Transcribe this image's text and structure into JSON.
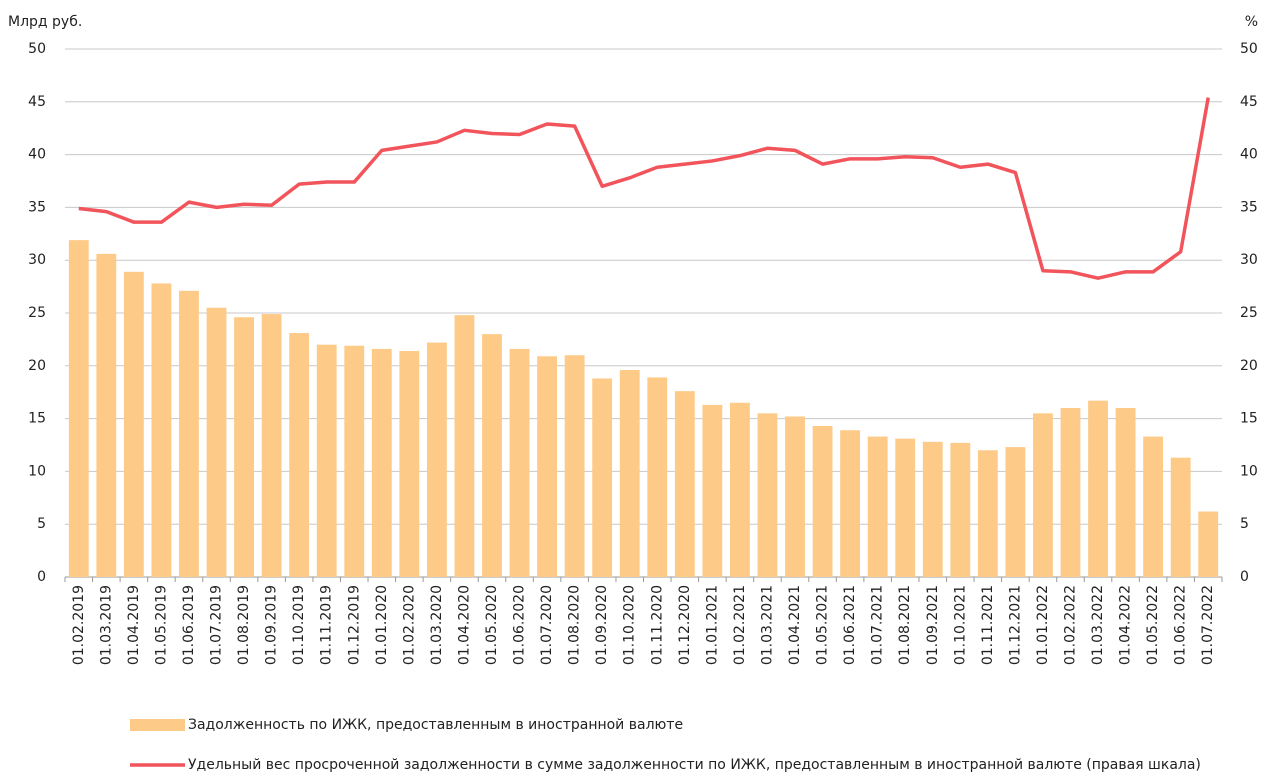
{
  "chart_data": {
    "type": "bar",
    "y_label": "Млрд руб.",
    "y2_label": "%",
    "categories": [
      "01.02.2019",
      "01.03.2019",
      "01.04.2019",
      "01.05.2019",
      "01.06.2019",
      "01.07.2019",
      "01.08.2019",
      "01.09.2019",
      "01.10.2019",
      "01.11.2019",
      "01.12.2019",
      "01.01.2020",
      "01.02.2020",
      "01.03.2020",
      "01.04.2020",
      "01.05.2020",
      "01.06.2020",
      "01.07.2020",
      "01.08.2020",
      "01.09.2020",
      "01.10.2020",
      "01.11.2020",
      "01.12.2020",
      "01.01.2021",
      "01.02.2021",
      "01.03.2021",
      "01.04.2021",
      "01.05.2021",
      "01.06.2021",
      "01.07.2021",
      "01.08.2021",
      "01.09.2021",
      "01.10.2021",
      "01.11.2021",
      "01.12.2021",
      "01.01.2022",
      "01.02.2022",
      "01.03.2022",
      "01.04.2022",
      "01.05.2022",
      "01.06.2022",
      "01.07.2022"
    ],
    "series": [
      {
        "name": "Задолженность по ИЖК, предоставленным в иностранной валюте",
        "type": "bar",
        "color": "#fdca88",
        "values": [
          31.9,
          30.6,
          28.9,
          27.8,
          27.1,
          25.5,
          24.6,
          24.9,
          23.1,
          22.0,
          21.9,
          21.6,
          21.4,
          22.2,
          24.8,
          23.0,
          21.6,
          20.9,
          21.0,
          18.8,
          19.6,
          18.9,
          17.6,
          16.3,
          16.5,
          15.5,
          15.2,
          14.3,
          13.9,
          13.3,
          13.1,
          12.8,
          12.7,
          12.0,
          12.3,
          15.5,
          16.0,
          16.7,
          16.0,
          13.3,
          11.3,
          6.2
        ]
      },
      {
        "name": "Удельный вес просроченной задолженности в сумме задолженности по ИЖК, предоставленным в иностранной валюте (правая шкала)",
        "type": "line",
        "axis": "y2",
        "color": "#f2545b",
        "values": [
          34.9,
          34.6,
          33.6,
          33.6,
          35.5,
          35.0,
          35.3,
          35.2,
          37.2,
          37.4,
          37.4,
          40.4,
          40.8,
          41.2,
          42.3,
          42.0,
          41.9,
          42.9,
          42.7,
          37.0,
          37.8,
          38.8,
          39.1,
          39.4,
          39.9,
          40.6,
          40.4,
          39.1,
          39.6,
          39.6,
          39.8,
          39.7,
          38.8,
          39.1,
          38.3,
          29.0,
          28.9,
          28.3,
          28.9,
          28.9,
          30.8,
          45.4
        ]
      }
    ],
    "ylim": [
      0,
      50
    ],
    "yticks": [
      0,
      5,
      10,
      15,
      20,
      25,
      30,
      35,
      40,
      45,
      50
    ],
    "y2lim": [
      0,
      50
    ],
    "y2ticks": [
      0,
      5,
      10,
      15,
      20,
      25,
      30,
      35,
      40,
      45,
      50
    ],
    "grid": true
  }
}
